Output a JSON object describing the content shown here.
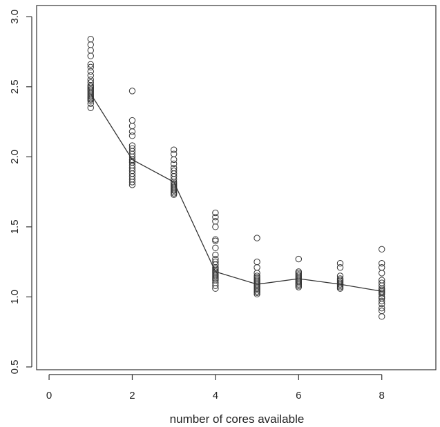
{
  "chart_data": {
    "type": "scatter",
    "title": "",
    "xlabel": "number of cores available",
    "ylabel": "",
    "xlim": [
      -0.3,
      9.3
    ],
    "ylim": [
      0.48,
      3.08
    ],
    "grid": false,
    "x_ticks": [
      0,
      2,
      4,
      6,
      8
    ],
    "x_tick_labels": [
      "0",
      "2",
      "4",
      "6",
      "8"
    ],
    "y_ticks": [
      0.5,
      1.0,
      1.5,
      2.0,
      2.5,
      3.0
    ],
    "y_tick_labels": [
      "0.5",
      "1.0",
      "1.5",
      "2.0",
      "2.5",
      "3.0"
    ],
    "series": [
      {
        "kind": "points",
        "marker": "open-circle",
        "color": "#333333",
        "points": [
          [
            1,
            2.84
          ],
          [
            1,
            2.8
          ],
          [
            1,
            2.76
          ],
          [
            1,
            2.72
          ],
          [
            1,
            2.66
          ],
          [
            1,
            2.64
          ],
          [
            1,
            2.61
          ],
          [
            1,
            2.58
          ],
          [
            1,
            2.55
          ],
          [
            1,
            2.53
          ],
          [
            1,
            2.51
          ],
          [
            1,
            2.5
          ],
          [
            1,
            2.49
          ],
          [
            1,
            2.48
          ],
          [
            1,
            2.47
          ],
          [
            1,
            2.46
          ],
          [
            1,
            2.45
          ],
          [
            1,
            2.44
          ],
          [
            1,
            2.43
          ],
          [
            1,
            2.42
          ],
          [
            1,
            2.41
          ],
          [
            1,
            2.4
          ],
          [
            1,
            2.38
          ],
          [
            1,
            2.35
          ],
          [
            2,
            2.47
          ],
          [
            2,
            2.26
          ],
          [
            2,
            2.22
          ],
          [
            2,
            2.18
          ],
          [
            2,
            2.15
          ],
          [
            2,
            2.08
          ],
          [
            2,
            2.06
          ],
          [
            2,
            2.04
          ],
          [
            2,
            2.02
          ],
          [
            2,
            2.0
          ],
          [
            2,
            1.98
          ],
          [
            2,
            1.97
          ],
          [
            2,
            1.96
          ],
          [
            2,
            1.94
          ],
          [
            2,
            1.92
          ],
          [
            2,
            1.9
          ],
          [
            2,
            1.88
          ],
          [
            2,
            1.86
          ],
          [
            2,
            1.84
          ],
          [
            2,
            1.82
          ],
          [
            2,
            1.8
          ],
          [
            3,
            2.05
          ],
          [
            3,
            2.02
          ],
          [
            3,
            1.98
          ],
          [
            3,
            1.95
          ],
          [
            3,
            1.92
          ],
          [
            3,
            1.9
          ],
          [
            3,
            1.88
          ],
          [
            3,
            1.86
          ],
          [
            3,
            1.84
          ],
          [
            3,
            1.82
          ],
          [
            3,
            1.81
          ],
          [
            3,
            1.8
          ],
          [
            3,
            1.79
          ],
          [
            3,
            1.78
          ],
          [
            3,
            1.77
          ],
          [
            3,
            1.76
          ],
          [
            3,
            1.75
          ],
          [
            3,
            1.74
          ],
          [
            3,
            1.73
          ],
          [
            4,
            1.6
          ],
          [
            4,
            1.57
          ],
          [
            4,
            1.54
          ],
          [
            4,
            1.5
          ],
          [
            4,
            1.41
          ],
          [
            4,
            1.4
          ],
          [
            4,
            1.35
          ],
          [
            4,
            1.3
          ],
          [
            4,
            1.27
          ],
          [
            4,
            1.25
          ],
          [
            4,
            1.23
          ],
          [
            4,
            1.21
          ],
          [
            4,
            1.2
          ],
          [
            4,
            1.19
          ],
          [
            4,
            1.18
          ],
          [
            4,
            1.17
          ],
          [
            4,
            1.16
          ],
          [
            4,
            1.15
          ],
          [
            4,
            1.14
          ],
          [
            4,
            1.13
          ],
          [
            4,
            1.12
          ],
          [
            4,
            1.1
          ],
          [
            4,
            1.08
          ],
          [
            4,
            1.06
          ],
          [
            5,
            1.42
          ],
          [
            5,
            1.25
          ],
          [
            5,
            1.21
          ],
          [
            5,
            1.17
          ],
          [
            5,
            1.15
          ],
          [
            5,
            1.14
          ],
          [
            5,
            1.13
          ],
          [
            5,
            1.12
          ],
          [
            5,
            1.11
          ],
          [
            5,
            1.1
          ],
          [
            5,
            1.09
          ],
          [
            5,
            1.08
          ],
          [
            5,
            1.07
          ],
          [
            5,
            1.06
          ],
          [
            5,
            1.05
          ],
          [
            5,
            1.04
          ],
          [
            5,
            1.03
          ],
          [
            5,
            1.02
          ],
          [
            6,
            1.27
          ],
          [
            6,
            1.18
          ],
          [
            6,
            1.17
          ],
          [
            6,
            1.16
          ],
          [
            6,
            1.15
          ],
          [
            6,
            1.14
          ],
          [
            6,
            1.13
          ],
          [
            6,
            1.12
          ],
          [
            6,
            1.11
          ],
          [
            6,
            1.1
          ],
          [
            6,
            1.09
          ],
          [
            6,
            1.08
          ],
          [
            6,
            1.07
          ],
          [
            7,
            1.24
          ],
          [
            7,
            1.21
          ],
          [
            7,
            1.15
          ],
          [
            7,
            1.13
          ],
          [
            7,
            1.12
          ],
          [
            7,
            1.11
          ],
          [
            7,
            1.1
          ],
          [
            7,
            1.09
          ],
          [
            7,
            1.08
          ],
          [
            7,
            1.07
          ],
          [
            7,
            1.06
          ],
          [
            8,
            1.34
          ],
          [
            8,
            1.24
          ],
          [
            8,
            1.21
          ],
          [
            8,
            1.17
          ],
          [
            8,
            1.12
          ],
          [
            8,
            1.1
          ],
          [
            8,
            1.08
          ],
          [
            8,
            1.06
          ],
          [
            8,
            1.05
          ],
          [
            8,
            1.04
          ],
          [
            8,
            1.03
          ],
          [
            8,
            1.02
          ],
          [
            8,
            1.0
          ],
          [
            8,
            0.99
          ],
          [
            8,
            0.97
          ],
          [
            8,
            0.95
          ],
          [
            8,
            0.92
          ],
          [
            8,
            0.9
          ],
          [
            8,
            0.86
          ]
        ]
      },
      {
        "kind": "line",
        "color": "#333333",
        "x": [
          1,
          2,
          3,
          4,
          5,
          6,
          7,
          8
        ],
        "y": [
          2.45,
          1.98,
          1.82,
          1.18,
          1.09,
          1.13,
          1.09,
          1.04
        ]
      }
    ]
  }
}
